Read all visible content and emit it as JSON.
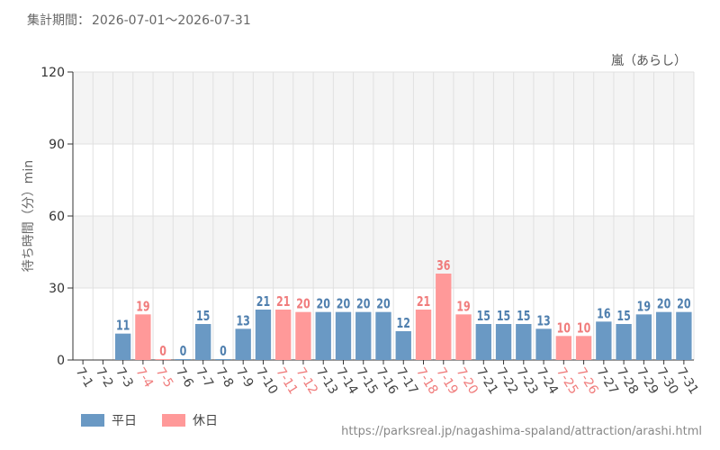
{
  "period": {
    "label": "集計期間：",
    "range": "2026-07-01～2026-07-31"
  },
  "source_url": "https://parksreal.jp/nagashima-spaland/attraction/arashi.html",
  "colors": {
    "weekday": "#6a99c4",
    "holiday": "#ff9999",
    "weekday_label": "#4f7fae",
    "holiday_label": "#f07c7c",
    "holiday_tick": "#f07c7c",
    "band": "#f4f4f4",
    "grid": "#e0e0e0",
    "axis": "#333333"
  },
  "legend": [
    {
      "key": "weekday",
      "label": "平日"
    },
    {
      "key": "holiday",
      "label": "休日"
    }
  ],
  "chart_data": {
    "type": "bar",
    "series_label": "嵐（あらし）",
    "ylabel": "待ち時間（分）min",
    "xlabel": "",
    "ylim": [
      0,
      120
    ],
    "yticks": [
      0,
      30,
      60,
      90,
      120
    ],
    "grid": true,
    "categories": [
      "7-1",
      "7-2",
      "7-3",
      "7-4",
      "7-5",
      "7-6",
      "7-7",
      "7-8",
      "7-9",
      "7-10",
      "7-11",
      "7-12",
      "7-13",
      "7-14",
      "7-15",
      "7-16",
      "7-17",
      "7-18",
      "7-19",
      "7-20",
      "7-21",
      "7-22",
      "7-23",
      "7-24",
      "7-25",
      "7-26",
      "7-27",
      "7-28",
      "7-29",
      "7-30",
      "7-31"
    ],
    "values": [
      null,
      null,
      11,
      19,
      0,
      0,
      15,
      0,
      13,
      21,
      21,
      20,
      20,
      20,
      20,
      20,
      12,
      21,
      36,
      19,
      15,
      15,
      15,
      13,
      10,
      10,
      16,
      15,
      19,
      20,
      20
    ],
    "day_type": [
      "weekday",
      "weekday",
      "weekday",
      "holiday",
      "holiday",
      "weekday",
      "weekday",
      "weekday",
      "weekday",
      "weekday",
      "holiday",
      "holiday",
      "weekday",
      "weekday",
      "weekday",
      "weekday",
      "weekday",
      "holiday",
      "holiday",
      "holiday",
      "weekday",
      "weekday",
      "weekday",
      "weekday",
      "holiday",
      "holiday",
      "weekday",
      "weekday",
      "weekday",
      "weekday",
      "weekday"
    ]
  }
}
